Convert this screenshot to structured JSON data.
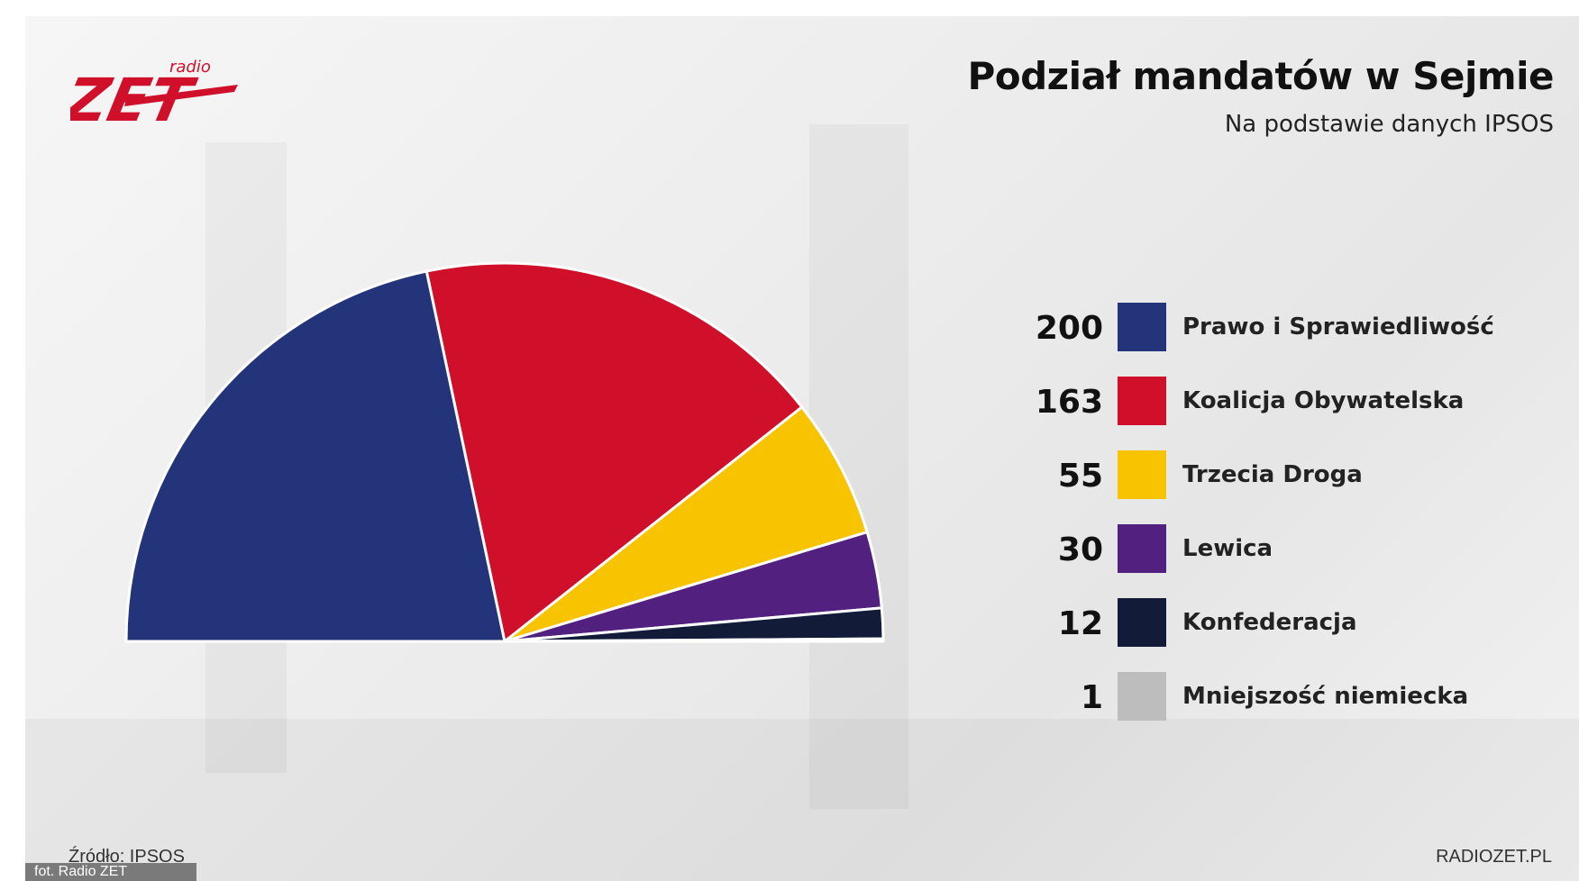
{
  "branding": {
    "logo_main": "ZET",
    "logo_small": "radio",
    "logo_color": "#d0102a",
    "site": "RADIOZET.PL",
    "photo_credit": "fot. Radio ZET"
  },
  "source_text": "Źródło: IPSOS",
  "chart_data": {
    "type": "pie",
    "variant": "half-donut-parliament",
    "title": "Podział mandatów w Sejmie",
    "subtitle": "Na podstawie danych IPSOS",
    "legend_position": "right",
    "series": [
      {
        "name": "Prawo i Sprawiedliwość",
        "value": 200,
        "color": "#24347a"
      },
      {
        "name": "Koalicja Obywatelska",
        "value": 163,
        "color": "#d0102a"
      },
      {
        "name": "Trzecia Droga",
        "value": 55,
        "color": "#f8c300"
      },
      {
        "name": "Lewica",
        "value": 30,
        "color": "#52207e"
      },
      {
        "name": "Konfederacja",
        "value": 12,
        "color": "#121c38"
      },
      {
        "name": "Mniejszość niemiecka",
        "value": 1,
        "color": "#bdbdbd"
      }
    ]
  }
}
